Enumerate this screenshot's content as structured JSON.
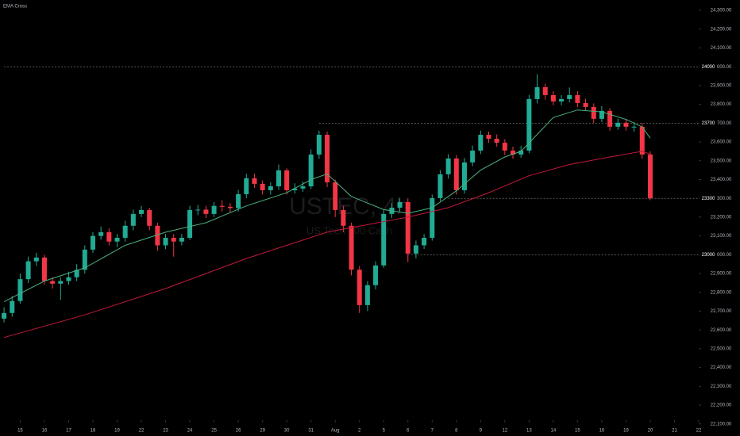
{
  "chart_data": {
    "type": "candlestick",
    "title": "EMA Cross",
    "watermark": "USTEC, 4h",
    "watermark_subtitle": "US Tech 100 Cash",
    "up_color": "#22ab94",
    "down_color": "#f23645",
    "candles": {
      "open": [
        22660,
        22690,
        22754,
        22870,
        22965,
        22985,
        22860,
        22846,
        22860,
        22880,
        22920,
        23027,
        23100,
        23120,
        23070,
        23090,
        23154,
        23217,
        23238,
        23154,
        23050,
        23090,
        23070,
        23090,
        23238,
        23240,
        23217,
        23260,
        23255,
        23248,
        23322,
        23407,
        23377,
        23343,
        23364,
        23449,
        23343,
        23352,
        23364,
        23533,
        23638,
        23385,
        23238,
        23154,
        22920,
        22732,
        22838,
        22943,
        23217,
        23250,
        23280,
        23006,
        23050,
        23090,
        23301,
        23428,
        23512,
        23343,
        23491,
        23554,
        23638,
        23617,
        23596,
        23554,
        23533,
        23554,
        23828,
        23891,
        23849,
        23815,
        23828,
        23849,
        23807,
        23786,
        23723,
        23765,
        23681,
        23702,
        23681,
        23681,
        23533
      ],
      "high": [
        22720,
        22780,
        22900,
        22990,
        23010,
        23000,
        22880,
        22880,
        22910,
        22950,
        23050,
        23120,
        23150,
        23140,
        23110,
        23180,
        23240,
        23260,
        23250,
        23170,
        23110,
        23110,
        23110,
        23260,
        23265,
        23260,
        23280,
        23290,
        23275,
        23345,
        23430,
        23430,
        23395,
        23385,
        23480,
        23460,
        23380,
        23390,
        23560,
        23660,
        23655,
        23400,
        23260,
        23170,
        22940,
        22860,
        22965,
        23240,
        23275,
        23300,
        23300,
        23075,
        23110,
        23320,
        23450,
        23535,
        23530,
        23515,
        23580,
        23660,
        23655,
        23640,
        23615,
        23575,
        23580,
        23850,
        23960,
        23910,
        23870,
        23850,
        23890,
        23870,
        23830,
        23805,
        23790,
        23780,
        23725,
        23720,
        23705,
        23700,
        23550
      ],
      "low": [
        22640,
        22670,
        22740,
        22850,
        22940,
        22840,
        22820,
        22760,
        22840,
        22860,
        22900,
        23010,
        23080,
        23050,
        23040,
        23070,
        23130,
        23200,
        23130,
        23020,
        23030,
        22990,
        23050,
        23080,
        23210,
        23195,
        23200,
        23230,
        23225,
        23230,
        23300,
        23355,
        23320,
        23320,
        23345,
        23320,
        23325,
        23335,
        23350,
        23510,
        23360,
        23200,
        23120,
        22890,
        22690,
        22700,
        22815,
        22930,
        23195,
        23230,
        22960,
        22980,
        23030,
        23075,
        23285,
        23405,
        23320,
        23325,
        23470,
        23535,
        23595,
        23575,
        23530,
        23510,
        23515,
        23540,
        23805,
        23825,
        23795,
        23795,
        23810,
        23785,
        23765,
        23700,
        23705,
        23660,
        23665,
        23660,
        23655,
        23510,
        23290
      ],
      "close": [
        22690,
        22754,
        22870,
        22965,
        22985,
        22860,
        22846,
        22860,
        22880,
        22920,
        23027,
        23100,
        23120,
        23070,
        23090,
        23154,
        23217,
        23238,
        23154,
        23050,
        23090,
        23070,
        23090,
        23238,
        23240,
        23217,
        23260,
        23255,
        23248,
        23322,
        23407,
        23377,
        23343,
        23364,
        23449,
        23343,
        23352,
        23364,
        23533,
        23638,
        23385,
        23238,
        23154,
        22920,
        22732,
        22838,
        22943,
        23217,
        23250,
        23280,
        23006,
        23050,
        23090,
        23301,
        23428,
        23512,
        23343,
        23491,
        23554,
        23638,
        23617,
        23596,
        23554,
        23533,
        23554,
        23828,
        23891,
        23849,
        23815,
        23828,
        23849,
        23807,
        23786,
        23723,
        23765,
        23681,
        23702,
        23681,
        23681,
        23533,
        23301
      ]
    },
    "series": [
      {
        "color": "#4caf7d",
        "x": [
          0,
          5,
          10,
          15,
          20,
          25,
          30,
          35,
          38,
          40,
          43,
          47,
          50,
          53,
          56,
          59,
          62,
          64,
          66,
          68,
          71,
          74,
          77,
          79,
          80
        ],
        "values": [
          22750,
          22860,
          22930,
          23050,
          23120,
          23170,
          23260,
          23330,
          23400,
          23430,
          23310,
          23240,
          23220,
          23250,
          23340,
          23450,
          23520,
          23550,
          23640,
          23730,
          23770,
          23760,
          23720,
          23680,
          23620
        ]
      },
      {
        "color": "#c2183a",
        "x": [
          0,
          10,
          20,
          30,
          40,
          45,
          50,
          55,
          60,
          65,
          70,
          75,
          79,
          80
        ],
        "values": [
          22560,
          22680,
          22820,
          22980,
          23120,
          23160,
          23200,
          23250,
          23330,
          23420,
          23480,
          23520,
          23550,
          23535
        ]
      }
    ],
    "levels": [
      {
        "value": 24000,
        "from": 0
      },
      {
        "value": 23700,
        "from": 39
      },
      {
        "value": 23300,
        "from": 55
      },
      {
        "value": 23000,
        "from": 50
      }
    ],
    "xlim": [
      -0.5,
      86
    ],
    "ylim": [
      22120,
      24355
    ],
    "xticks": [
      {
        "value": 2,
        "label": "15"
      },
      {
        "value": 5,
        "label": "16"
      },
      {
        "value": 8,
        "label": "17"
      },
      {
        "value": 11,
        "label": "18"
      },
      {
        "value": 14,
        "label": "19"
      },
      {
        "value": 17,
        "label": "22"
      },
      {
        "value": 20,
        "label": "23"
      },
      {
        "value": 23,
        "label": "24"
      },
      {
        "value": 26,
        "label": "25"
      },
      {
        "value": 29,
        "label": "26"
      },
      {
        "value": 32,
        "label": "29"
      },
      {
        "value": 35,
        "label": "30"
      },
      {
        "value": 38,
        "label": "31"
      },
      {
        "value": 41,
        "label": "Aug"
      },
      {
        "value": 44,
        "label": "2"
      },
      {
        "value": 47,
        "label": "5"
      },
      {
        "value": 50,
        "label": "6"
      },
      {
        "value": 53,
        "label": "7"
      },
      {
        "value": 56,
        "label": "8"
      },
      {
        "value": 59,
        "label": "9"
      },
      {
        "value": 62,
        "label": "12"
      },
      {
        "value": 65,
        "label": "13"
      },
      {
        "value": 68,
        "label": "14"
      },
      {
        "value": 71,
        "label": "15"
      },
      {
        "value": 74,
        "label": "16"
      },
      {
        "value": 77,
        "label": "19"
      },
      {
        "value": 80,
        "label": "20"
      },
      {
        "value": 83,
        "label": "21"
      },
      {
        "value": 86,
        "label": "22"
      }
    ],
    "yticks": [
      {
        "value": 24300,
        "label": "24,300.00"
      },
      {
        "value": 24200,
        "label": "24,200.00"
      },
      {
        "value": 24100,
        "label": "24,100.00"
      },
      {
        "value": 24000,
        "label": "24,000.00"
      },
      {
        "value": 23900,
        "label": "23,900.00"
      },
      {
        "value": 23800,
        "label": "23,800.00"
      },
      {
        "value": 23700,
        "label": "23,700.00"
      },
      {
        "value": 23600,
        "label": "23,600.00"
      },
      {
        "value": 23500,
        "label": "23,500.00"
      },
      {
        "value": 23400,
        "label": "23,400.00"
      },
      {
        "value": 23300,
        "label": "23,300.00"
      },
      {
        "value": 23200,
        "label": "23,200.00"
      },
      {
        "value": 23100,
        "label": "23,100.00"
      },
      {
        "value": 23000,
        "label": "23,000.00"
      },
      {
        "value": 22900,
        "label": "22,900.00"
      },
      {
        "value": 22800,
        "label": "22,800.00"
      },
      {
        "value": 22700,
        "label": "22,700.00"
      },
      {
        "value": 22600,
        "label": "22,600.00"
      },
      {
        "value": 22500,
        "label": "22,500.00"
      },
      {
        "value": 22400,
        "label": "22,400.00"
      },
      {
        "value": 22300,
        "label": "22,300.00"
      },
      {
        "value": 22200,
        "label": "22,200.00"
      },
      {
        "value": 22100,
        "label": "22,100.00"
      }
    ]
  }
}
